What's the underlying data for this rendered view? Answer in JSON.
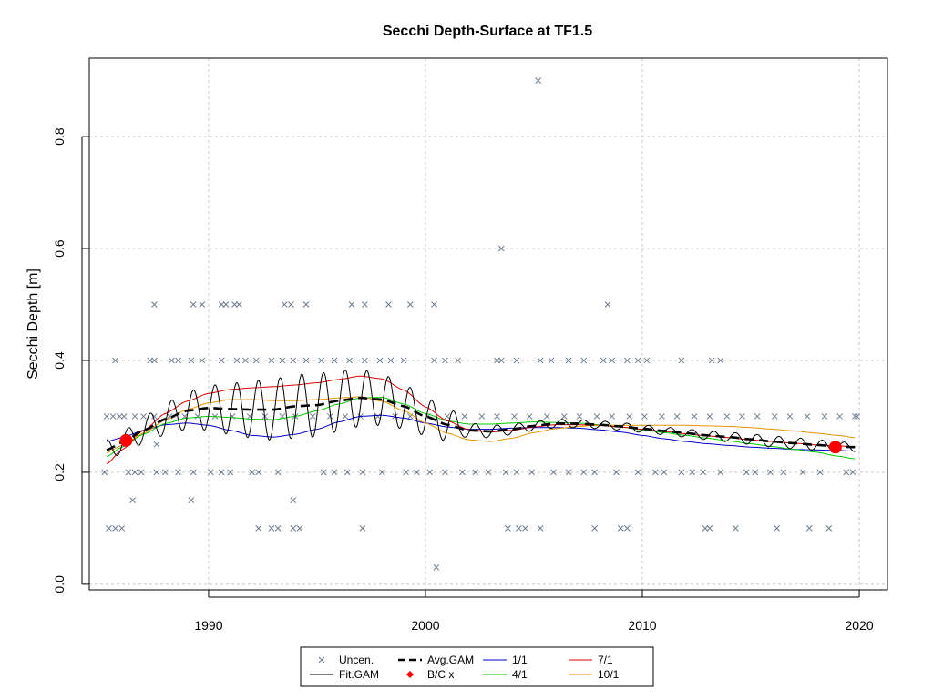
{
  "chart_data": {
    "type": "scatter",
    "title": "Secchi Depth-Surface at TF1.5",
    "xlabel": "",
    "ylabel": "Secchi Depth [m]",
    "xlim": [
      1984.5,
      2021.3
    ],
    "ylim": [
      -0.01,
      0.94
    ],
    "x_ticks": [
      1990,
      2000,
      2010,
      2020
    ],
    "y_ticks": [
      0.0,
      0.2,
      0.4,
      0.6,
      0.8
    ],
    "y_tick_labels": [
      "0.0",
      "0.2",
      "0.4",
      "0.6",
      "0.8"
    ],
    "grid": true,
    "legend_position": "bottom",
    "legend": [
      {
        "key": "uncen",
        "label": "Uncen."
      },
      {
        "key": "avg",
        "label": "Avg.GAM"
      },
      {
        "key": "s11",
        "label": "1/1"
      },
      {
        "key": "s71",
        "label": "7/1"
      },
      {
        "key": "fit",
        "label": "Fit.GAM"
      },
      {
        "key": "bc",
        "label": "B/C x"
      },
      {
        "key": "s41",
        "label": "4/1"
      },
      {
        "key": "s101",
        "label": "10/1"
      }
    ],
    "colors": {
      "uncen": "#6b7b8c",
      "avg": "#000000",
      "fit": "#000000",
      "s11": "#0000cc",
      "s41": "#00cc00",
      "s71": "#dd0000",
      "s101": "#e69500",
      "bc": "#ff0000",
      "grid": "#c8c8c8"
    },
    "uncen_points": [
      [
        1985.3,
        0.3
      ],
      [
        1985.6,
        0.3
      ],
      [
        1985.9,
        0.3
      ],
      [
        1986.1,
        0.3
      ],
      [
        1986.6,
        0.3
      ],
      [
        1987.0,
        0.3
      ],
      [
        1987.5,
        0.3
      ],
      [
        1988.2,
        0.3
      ],
      [
        1988.9,
        0.3
      ],
      [
        1989.5,
        0.3
      ],
      [
        1990.3,
        0.3
      ],
      [
        1991.1,
        0.3
      ],
      [
        1991.9,
        0.3
      ],
      [
        1992.6,
        0.3
      ],
      [
        1993.4,
        0.3
      ],
      [
        1994.0,
        0.3
      ],
      [
        1994.8,
        0.3
      ],
      [
        1995.6,
        0.3
      ],
      [
        1996.3,
        0.3
      ],
      [
        1997.0,
        0.3
      ],
      [
        1997.8,
        0.3
      ],
      [
        1998.6,
        0.3
      ],
      [
        1999.3,
        0.3
      ],
      [
        2000.1,
        0.3
      ],
      [
        2001.0,
        0.3
      ],
      [
        2001.8,
        0.3
      ],
      [
        2002.6,
        0.3
      ],
      [
        2003.3,
        0.3
      ],
      [
        2004.1,
        0.3
      ],
      [
        2004.8,
        0.3
      ],
      [
        2005.6,
        0.3
      ],
      [
        2006.4,
        0.3
      ],
      [
        2007.1,
        0.3
      ],
      [
        2007.9,
        0.3
      ],
      [
        2008.6,
        0.3
      ],
      [
        2009.4,
        0.3
      ],
      [
        2010.1,
        0.3
      ],
      [
        2010.9,
        0.3
      ],
      [
        2011.6,
        0.3
      ],
      [
        2012.4,
        0.3
      ],
      [
        2013.1,
        0.3
      ],
      [
        2013.9,
        0.3
      ],
      [
        2014.6,
        0.3
      ],
      [
        2015.3,
        0.3
      ],
      [
        2016.1,
        0.3
      ],
      [
        2016.8,
        0.3
      ],
      [
        2017.6,
        0.3
      ],
      [
        2018.4,
        0.3
      ],
      [
        2019.1,
        0.3
      ],
      [
        2019.8,
        0.3
      ],
      [
        2019.9,
        0.3
      ],
      [
        1985.2,
        0.2
      ],
      [
        1986.3,
        0.2
      ],
      [
        1986.6,
        0.2
      ],
      [
        1986.9,
        0.2
      ],
      [
        1987.6,
        0.2
      ],
      [
        1988.0,
        0.2
      ],
      [
        1988.6,
        0.2
      ],
      [
        1989.3,
        0.2
      ],
      [
        1990.1,
        0.2
      ],
      [
        1990.6,
        0.2
      ],
      [
        1991.0,
        0.2
      ],
      [
        1992.0,
        0.2
      ],
      [
        1992.3,
        0.2
      ],
      [
        1993.2,
        0.2
      ],
      [
        1995.3,
        0.2
      ],
      [
        1995.8,
        0.2
      ],
      [
        1996.4,
        0.2
      ],
      [
        1997.1,
        0.2
      ],
      [
        1998.0,
        0.2
      ],
      [
        1999.1,
        0.2
      ],
      [
        1999.6,
        0.2
      ],
      [
        2000.2,
        0.2
      ],
      [
        2000.9,
        0.2
      ],
      [
        2001.7,
        0.2
      ],
      [
        2002.3,
        0.2
      ],
      [
        2002.9,
        0.2
      ],
      [
        2003.7,
        0.2
      ],
      [
        2004.2,
        0.2
      ],
      [
        2004.9,
        0.2
      ],
      [
        2005.9,
        0.2
      ],
      [
        2006.6,
        0.2
      ],
      [
        2007.3,
        0.2
      ],
      [
        2007.8,
        0.2
      ],
      [
        2008.8,
        0.2
      ],
      [
        2009.8,
        0.2
      ],
      [
        2010.6,
        0.2
      ],
      [
        2011.0,
        0.2
      ],
      [
        2011.8,
        0.2
      ],
      [
        2012.3,
        0.2
      ],
      [
        2012.8,
        0.2
      ],
      [
        2013.6,
        0.2
      ],
      [
        2014.8,
        0.2
      ],
      [
        2015.2,
        0.2
      ],
      [
        2015.9,
        0.2
      ],
      [
        2016.5,
        0.2
      ],
      [
        2017.4,
        0.2
      ],
      [
        2018.2,
        0.2
      ],
      [
        2019.4,
        0.2
      ],
      [
        2019.7,
        0.2
      ],
      [
        1985.7,
        0.4
      ],
      [
        1987.3,
        0.4
      ],
      [
        1987.5,
        0.4
      ],
      [
        1988.3,
        0.4
      ],
      [
        1988.6,
        0.4
      ],
      [
        1989.2,
        0.4
      ],
      [
        1989.7,
        0.4
      ],
      [
        1990.6,
        0.4
      ],
      [
        1991.3,
        0.4
      ],
      [
        1991.7,
        0.4
      ],
      [
        1992.2,
        0.4
      ],
      [
        1992.9,
        0.4
      ],
      [
        1993.4,
        0.4
      ],
      [
        1993.9,
        0.4
      ],
      [
        1994.5,
        0.4
      ],
      [
        1995.2,
        0.4
      ],
      [
        1995.8,
        0.4
      ],
      [
        1996.5,
        0.4
      ],
      [
        1997.2,
        0.4
      ],
      [
        1997.9,
        0.4
      ],
      [
        1998.4,
        0.4
      ],
      [
        1999.0,
        0.4
      ],
      [
        2000.4,
        0.4
      ],
      [
        2000.9,
        0.4
      ],
      [
        2001.5,
        0.4
      ],
      [
        2003.3,
        0.4
      ],
      [
        2003.5,
        0.4
      ],
      [
        2004.2,
        0.4
      ],
      [
        2005.3,
        0.4
      ],
      [
        2005.8,
        0.4
      ],
      [
        2006.6,
        0.4
      ],
      [
        2007.3,
        0.4
      ],
      [
        2008.2,
        0.4
      ],
      [
        2008.6,
        0.4
      ],
      [
        2009.3,
        0.4
      ],
      [
        2009.8,
        0.4
      ],
      [
        2010.2,
        0.4
      ],
      [
        2011.8,
        0.4
      ],
      [
        2013.2,
        0.4
      ],
      [
        2013.6,
        0.4
      ],
      [
        1987.5,
        0.5
      ],
      [
        1989.3,
        0.5
      ],
      [
        1989.7,
        0.5
      ],
      [
        1990.6,
        0.5
      ],
      [
        1990.8,
        0.5
      ],
      [
        1991.2,
        0.5
      ],
      [
        1991.4,
        0.5
      ],
      [
        1993.5,
        0.5
      ],
      [
        1993.8,
        0.5
      ],
      [
        1994.5,
        0.5
      ],
      [
        1996.6,
        0.5
      ],
      [
        1997.2,
        0.5
      ],
      [
        1998.3,
        0.5
      ],
      [
        1999.3,
        0.5
      ],
      [
        2000.4,
        0.5
      ],
      [
        2008.4,
        0.5
      ],
      [
        1985.4,
        0.1
      ],
      [
        1985.7,
        0.1
      ],
      [
        1986.0,
        0.1
      ],
      [
        1992.3,
        0.1
      ],
      [
        1992.9,
        0.1
      ],
      [
        1993.2,
        0.1
      ],
      [
        1993.9,
        0.1
      ],
      [
        1994.2,
        0.1
      ],
      [
        1997.1,
        0.1
      ],
      [
        2003.8,
        0.1
      ],
      [
        2004.3,
        0.1
      ],
      [
        2004.6,
        0.1
      ],
      [
        2005.3,
        0.1
      ],
      [
        2007.8,
        0.1
      ],
      [
        2009.0,
        0.1
      ],
      [
        2009.3,
        0.1
      ],
      [
        2012.9,
        0.1
      ],
      [
        2013.1,
        0.1
      ],
      [
        2014.3,
        0.1
      ],
      [
        2016.2,
        0.1
      ],
      [
        2017.7,
        0.1
      ],
      [
        2018.6,
        0.1
      ],
      [
        1986.5,
        0.15
      ],
      [
        1989.2,
        0.15
      ],
      [
        1993.9,
        0.15
      ],
      [
        1987.6,
        0.25
      ],
      [
        2003.5,
        0.6
      ],
      [
        2005.2,
        0.9
      ],
      [
        2000.5,
        0.03
      ]
    ],
    "avg_gam": {
      "x": [
        1985.3,
        1986.1,
        1987,
        1988,
        1989,
        1990,
        1991,
        1992,
        1993,
        1994,
        1995,
        1996,
        1997,
        1998,
        1999,
        2000,
        2001,
        2002,
        2003,
        2004,
        2005,
        2006,
        2007,
        2008,
        2009,
        2010,
        2011,
        2012,
        2013,
        2014,
        2015,
        2016,
        2017,
        2018,
        2019,
        2019.8
      ],
      "y": [
        0.24,
        0.255,
        0.275,
        0.295,
        0.31,
        0.315,
        0.313,
        0.312,
        0.312,
        0.318,
        0.32,
        0.328,
        0.333,
        0.33,
        0.318,
        0.3,
        0.285,
        0.275,
        0.273,
        0.277,
        0.283,
        0.287,
        0.287,
        0.285,
        0.282,
        0.278,
        0.274,
        0.27,
        0.266,
        0.263,
        0.259,
        0.255,
        0.252,
        0.249,
        0.246,
        0.245
      ]
    },
    "fit_gam": {
      "x_start": 1985.3,
      "x_end": 2019.8,
      "amp_peak": 0.045,
      "base_series": "avg_gam"
    },
    "s11": {
      "x": [
        1985.3,
        1986,
        1987,
        1988,
        1989,
        1990,
        1991,
        1992,
        1993,
        1994,
        1995,
        1996,
        1997,
        1998,
        1999,
        2000,
        2001,
        2002,
        2003,
        2004,
        2005,
        2006,
        2007,
        2008,
        2009,
        2010,
        2011,
        2012,
        2013,
        2014,
        2015,
        2016,
        2017,
        2018,
        2019,
        2019.8
      ],
      "y": [
        0.255,
        0.262,
        0.275,
        0.285,
        0.288,
        0.284,
        0.275,
        0.266,
        0.263,
        0.268,
        0.277,
        0.29,
        0.3,
        0.302,
        0.297,
        0.288,
        0.281,
        0.277,
        0.277,
        0.279,
        0.28,
        0.28,
        0.279,
        0.276,
        0.272,
        0.266,
        0.26,
        0.255,
        0.251,
        0.248,
        0.245,
        0.243,
        0.241,
        0.24,
        0.239,
        0.238
      ]
    },
    "s41": {
      "x": [
        1985.3,
        1986,
        1987,
        1988,
        1989,
        1990,
        1991,
        1992,
        1993,
        1994,
        1995,
        1996,
        1997,
        1998,
        1999,
        2000,
        2001,
        2002,
        2003,
        2004,
        2005,
        2006,
        2007,
        2008,
        2009,
        2010,
        2011,
        2012,
        2013,
        2014,
        2015,
        2016,
        2017,
        2018,
        2019,
        2019.8
      ],
      "y": [
        0.228,
        0.245,
        0.268,
        0.287,
        0.297,
        0.3,
        0.298,
        0.295,
        0.294,
        0.3,
        0.31,
        0.322,
        0.333,
        0.334,
        0.322,
        0.305,
        0.292,
        0.286,
        0.286,
        0.288,
        0.29,
        0.289,
        0.288,
        0.285,
        0.281,
        0.276,
        0.271,
        0.266,
        0.261,
        0.256,
        0.251,
        0.246,
        0.241,
        0.236,
        0.229,
        0.224
      ]
    },
    "s71": {
      "x": [
        1985.3,
        1986,
        1987,
        1988,
        1989,
        1990,
        1991,
        1992,
        1993,
        1994,
        1995,
        1996,
        1997,
        1998,
        1999,
        2000,
        2001,
        2002,
        2003,
        2004,
        2005,
        2006,
        2007,
        2008,
        2009,
        2010,
        2011,
        2012,
        2013,
        2014,
        2015,
        2016,
        2017,
        2018,
        2019,
        2019.8
      ],
      "y": [
        0.215,
        0.24,
        0.275,
        0.305,
        0.327,
        0.341,
        0.348,
        0.351,
        0.353,
        0.356,
        0.36,
        0.366,
        0.372,
        0.367,
        0.347,
        0.317,
        0.292,
        0.276,
        0.272,
        0.275,
        0.281,
        0.285,
        0.285,
        0.284,
        0.281,
        0.277,
        0.273,
        0.269,
        0.265,
        0.262,
        0.258,
        0.255,
        0.252,
        0.249,
        0.247,
        0.246
      ]
    },
    "s101": {
      "x": [
        1985.3,
        1986,
        1987,
        1988,
        1989,
        1990,
        1991,
        1992,
        1993,
        1994,
        1995,
        1996,
        1997,
        1998,
        1999,
        2000,
        2001,
        2002,
        2003,
        2004,
        2005,
        2006,
        2007,
        2008,
        2009,
        2010,
        2011,
        2012,
        2013,
        2014,
        2015,
        2016,
        2017,
        2018,
        2019,
        2019.8
      ],
      "y": [
        0.235,
        0.248,
        0.27,
        0.293,
        0.312,
        0.324,
        0.33,
        0.33,
        0.328,
        0.328,
        0.33,
        0.333,
        0.335,
        0.327,
        0.31,
        0.288,
        0.27,
        0.258,
        0.255,
        0.261,
        0.271,
        0.278,
        0.282,
        0.284,
        0.284,
        0.284,
        0.284,
        0.284,
        0.283,
        0.282,
        0.28,
        0.277,
        0.274,
        0.27,
        0.266,
        0.262
      ]
    },
    "bc_points": [
      [
        1986.2,
        0.257
      ],
      [
        2018.9,
        0.245
      ]
    ]
  }
}
